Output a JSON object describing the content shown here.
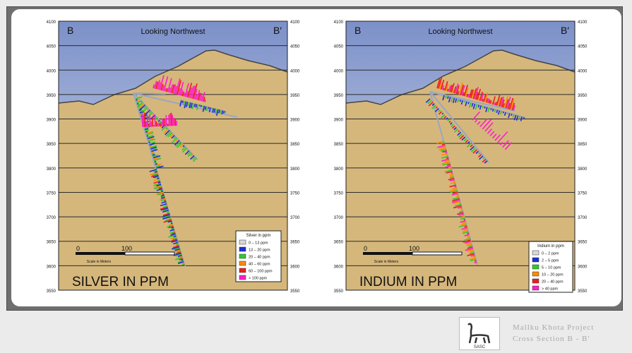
{
  "left": {
    "corner_left": "B",
    "corner_right": "B′",
    "heading": "Looking Northwest",
    "title": "SILVER IN PPM",
    "scale_zero": "0",
    "scale_hundred": "100",
    "scale_caption": "Scale in Meters",
    "legend_title": "Silver in ppm",
    "legend": [
      {
        "label": "0 – 13 ppm",
        "color": "#d9d9d9"
      },
      {
        "label": "13 – 20 ppm",
        "color": "#1a2ed8"
      },
      {
        "label": "20 – 40 ppm",
        "color": "#32c82a"
      },
      {
        "label": "40 – 60 ppm",
        "color": "#ff8a00"
      },
      {
        "label": "60 – 100 ppm",
        "color": "#ee1c1c"
      },
      {
        "label": "> 100 ppm",
        "color": "#ff1ec8"
      }
    ],
    "axis_labels": [
      "4100",
      "4050",
      "4000",
      "3950",
      "3900",
      "3850",
      "3800",
      "3750",
      "3700",
      "3650",
      "3600",
      "3550"
    ]
  },
  "right": {
    "corner_left": "B",
    "corner_right": "B′",
    "heading": "Looking Northwest",
    "title": "INDIUM IN PPM",
    "scale_zero": "0",
    "scale_hundred": "100",
    "scale_caption": "Scale in Meters",
    "legend_title": "Indium in ppm",
    "legend": [
      {
        "label": "0 – 2 ppm",
        "color": "#d9d9d9"
      },
      {
        "label": "2 – 5 ppm",
        "color": "#1a2ed8"
      },
      {
        "label": "5 – 10 ppm",
        "color": "#32c82a"
      },
      {
        "label": "10 – 20 ppm",
        "color": "#ff8a00"
      },
      {
        "label": "20 – 40 ppm",
        "color": "#ee1c1c"
      },
      {
        "label": "> 40 ppm",
        "color": "#ff1ec8"
      }
    ],
    "axis_labels": [
      "4100",
      "4050",
      "4000",
      "3950",
      "3900",
      "3850",
      "3800",
      "3750",
      "3700",
      "3650",
      "3600",
      "3550"
    ]
  },
  "logo": {
    "text": "SASC"
  },
  "credit": {
    "line1": "Mallku Khota Project",
    "line2": "Cross Section B - B′"
  }
}
